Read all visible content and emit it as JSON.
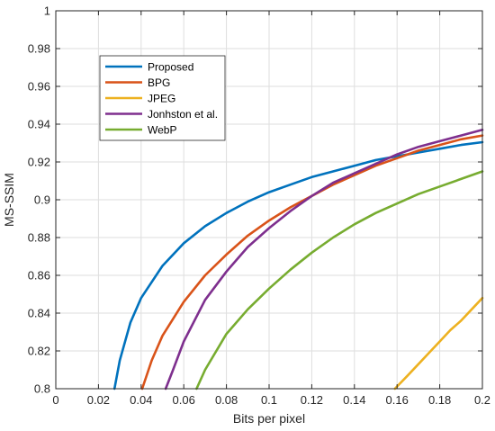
{
  "chart_data": {
    "type": "line",
    "title": "",
    "xlabel": "Bits per pixel",
    "ylabel": "MS-SSIM",
    "xlim": [
      0,
      0.2
    ],
    "ylim": [
      0.8,
      1.0
    ],
    "x_ticks": [
      "0",
      "0.02",
      "0.04",
      "0.06",
      "0.08",
      "0.1",
      "0.12",
      "0.14",
      "0.16",
      "0.18",
      "0.2"
    ],
    "y_ticks": [
      "0.8",
      "0.82",
      "0.84",
      "0.86",
      "0.88",
      "0.9",
      "0.92",
      "0.94",
      "0.96",
      "0.98",
      "1"
    ],
    "grid": true,
    "legend_placement": "upper-left",
    "series": [
      {
        "name": "Proposed",
        "color": "#0072BD",
        "x": [
          0.0275,
          0.03,
          0.035,
          0.04,
          0.05,
          0.06,
          0.07,
          0.08,
          0.09,
          0.1,
          0.11,
          0.12,
          0.13,
          0.14,
          0.15,
          0.16,
          0.17,
          0.18,
          0.19,
          0.2
        ],
        "y": [
          0.8,
          0.815,
          0.835,
          0.848,
          0.865,
          0.877,
          0.886,
          0.893,
          0.899,
          0.904,
          0.908,
          0.912,
          0.915,
          0.918,
          0.921,
          0.923,
          0.925,
          0.927,
          0.929,
          0.9305
        ]
      },
      {
        "name": "BPG",
        "color": "#D95319",
        "x": [
          0.0405,
          0.045,
          0.05,
          0.06,
          0.07,
          0.08,
          0.09,
          0.1,
          0.11,
          0.12,
          0.13,
          0.14,
          0.15,
          0.16,
          0.17,
          0.18,
          0.19,
          0.2
        ],
        "y": [
          0.8,
          0.815,
          0.828,
          0.846,
          0.86,
          0.871,
          0.881,
          0.889,
          0.896,
          0.902,
          0.908,
          0.913,
          0.918,
          0.922,
          0.926,
          0.929,
          0.932,
          0.934
        ]
      },
      {
        "name": "JPEG",
        "color": "#EDB120",
        "x": [
          0.159,
          0.165,
          0.17,
          0.175,
          0.18,
          0.185,
          0.19,
          0.195,
          0.2
        ],
        "y": [
          0.8,
          0.807,
          0.813,
          0.819,
          0.825,
          0.831,
          0.836,
          0.842,
          0.848
        ]
      },
      {
        "name": "Jonhston et al.",
        "color": "#7E2F8E",
        "x": [
          0.0515,
          0.055,
          0.06,
          0.07,
          0.08,
          0.09,
          0.1,
          0.11,
          0.12,
          0.13,
          0.14,
          0.15,
          0.16,
          0.17,
          0.18,
          0.19,
          0.2
        ],
        "y": [
          0.8,
          0.81,
          0.825,
          0.847,
          0.862,
          0.875,
          0.885,
          0.894,
          0.902,
          0.909,
          0.914,
          0.919,
          0.924,
          0.928,
          0.931,
          0.934,
          0.937
        ]
      },
      {
        "name": "WebP",
        "color": "#77AC30",
        "x": [
          0.066,
          0.07,
          0.08,
          0.09,
          0.1,
          0.11,
          0.12,
          0.13,
          0.14,
          0.15,
          0.16,
          0.17,
          0.18,
          0.19,
          0.2
        ],
        "y": [
          0.8,
          0.81,
          0.829,
          0.842,
          0.853,
          0.863,
          0.872,
          0.88,
          0.887,
          0.893,
          0.898,
          0.903,
          0.907,
          0.911,
          0.915
        ]
      }
    ]
  }
}
